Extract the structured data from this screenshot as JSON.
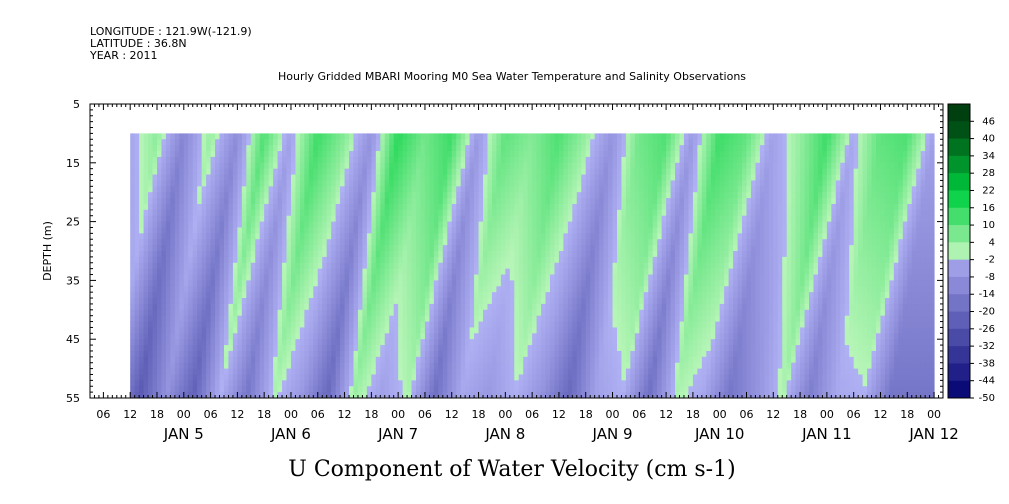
{
  "header": {
    "longitude": "LONGITUDE : 121.9W(-121.9)",
    "latitude": "LATITUDE : 36.8N",
    "year": "YEAR : 2011"
  },
  "colors": {
    "negative_light": "#b0b0f4",
    "negative_dark": "#000070",
    "positive_light": "#b8f5b8",
    "positive_mid": "#00d040",
    "positive_dark": "#004010",
    "fill_value": "#ffffff"
  },
  "chart_data": {
    "type": "heatmap",
    "title": "Hourly Gridded MBARI Mooring M0 Sea Water Temperature and Salinity Observations",
    "xlabel": "",
    "ylabel": "DEPTH (m)",
    "variable_label": "U Component of Water Velocity (cm s-1)",
    "x_range_hours": [
      -21,
      170
    ],
    "x_hour_tick_labels": [
      "06",
      "12",
      "18",
      "00",
      "06",
      "12",
      "18",
      "00",
      "06",
      "12",
      "18",
      "00",
      "06",
      "12",
      "18",
      "00",
      "06",
      "12",
      "18",
      "00",
      "06",
      "12",
      "18",
      "00",
      "06",
      "12",
      "18",
      "00",
      "06",
      "12",
      "18",
      "00"
    ],
    "x_day_labels": [
      {
        "label": "JAN  5",
        "hour": 0
      },
      {
        "label": "JAN  6",
        "hour": 24
      },
      {
        "label": "JAN  7",
        "hour": 48
      },
      {
        "label": "JAN  8",
        "hour": 72
      },
      {
        "label": "JAN  9",
        "hour": 96
      },
      {
        "label": "JAN 10",
        "hour": 120
      },
      {
        "label": "JAN 11",
        "hour": 144
      },
      {
        "label": "JAN 12",
        "hour": 168
      }
    ],
    "y_range": [
      5,
      55
    ],
    "y_inverted": true,
    "y_ticks": [
      5,
      15,
      25,
      35,
      45,
      55
    ],
    "data_x_range_hours": [
      -12,
      168
    ],
    "data_depth_range": [
      10,
      55
    ],
    "colorbar": {
      "levels": [
        46,
        40,
        34,
        28,
        22,
        16,
        10,
        4,
        -2,
        -8,
        -14,
        -20,
        -26,
        -32,
        -38,
        -44,
        -50
      ],
      "min": -50,
      "max": 46
    },
    "series": [
      {
        "values": [
          {
            "hour": -12,
            "u": -3
          },
          {
            "hour": -6,
            "u": 5
          },
          {
            "hour": 0,
            "u": -12
          },
          {
            "hour": 6,
            "u": 4
          },
          {
            "hour": 12,
            "u": -10
          },
          {
            "hour": 18,
            "u": 12
          },
          {
            "hour": 24,
            "u": -4
          },
          {
            "hour": 30,
            "u": 14
          },
          {
            "hour": 36,
            "u": 6
          },
          {
            "hour": 42,
            "u": -8
          },
          {
            "hour": 48,
            "u": 16
          },
          {
            "hour": 54,
            "u": 8
          },
          {
            "hour": 60,
            "u": 14
          },
          {
            "hour": 66,
            "u": -6
          },
          {
            "hour": 72,
            "u": 10
          },
          {
            "hour": 78,
            "u": 6
          },
          {
            "hour": 84,
            "u": 12
          },
          {
            "hour": 90,
            "u": 4
          },
          {
            "hour": 96,
            "u": -8
          },
          {
            "hour": 102,
            "u": 8
          },
          {
            "hour": 108,
            "u": 12
          },
          {
            "hour": 114,
            "u": -6
          },
          {
            "hour": 120,
            "u": 14
          },
          {
            "hour": 126,
            "u": 10
          },
          {
            "hour": 132,
            "u": -4
          },
          {
            "hour": 138,
            "u": 4
          },
          {
            "hour": 144,
            "u": 14
          },
          {
            "hour": 150,
            "u": -2
          },
          {
            "hour": 156,
            "u": 10
          },
          {
            "hour": 162,
            "u": 12
          },
          {
            "hour": 168,
            "u": -4
          }
        ]
      }
    ]
  }
}
